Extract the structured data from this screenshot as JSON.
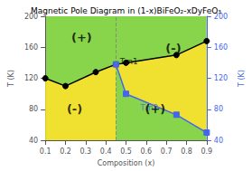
{
  "chart_data": {
    "type": "line",
    "title": "Magnetic Pole Diagram in (1-x)BiFeO₂-xDyFeO₃",
    "xlabel": "Composition (x)",
    "ylabel": "T (K)",
    "y2label": "T (K)",
    "xlim": [
      0.1,
      0.9
    ],
    "ylim": [
      40,
      200
    ],
    "y2lim": [
      40,
      200
    ],
    "xticks": [
      0.1,
      0.2,
      0.3,
      0.4,
      0.5,
      0.6,
      0.7,
      0.8,
      0.9
    ],
    "yticks": [
      40,
      80,
      120,
      160,
      200
    ],
    "y2ticks": [
      40,
      80,
      120,
      160,
      200
    ],
    "grid": false,
    "background_color": "#88d44a",
    "fill_color": "#f0e030",
    "vlines": [
      0.45
    ],
    "series": [
      {
        "name": "Tm1",
        "x": [
          0.1,
          0.2,
          0.35,
          0.45,
          0.5,
          0.75,
          0.9
        ],
        "values": [
          120,
          110,
          128,
          138,
          140,
          150,
          168
        ],
        "color": "#000000",
        "marker": "circle"
      },
      {
        "name": "Tm2",
        "x": [
          0.45,
          0.5,
          0.75,
          0.9
        ],
        "values": [
          138,
          100,
          73,
          50
        ],
        "color": "#4466ee",
        "marker": "square"
      }
    ],
    "annotations": [
      {
        "text": "Tm1",
        "x": 0.515,
        "y": 142,
        "color": "#000000"
      },
      {
        "text": "Tm2",
        "x": 0.615,
        "y": 82,
        "color": "#4466ee"
      },
      {
        "text": "(+)",
        "x": 0.28,
        "y": 172
      },
      {
        "text": "(-)",
        "x": 0.245,
        "y": 80
      },
      {
        "text": "(+)",
        "x": 0.645,
        "y": 80
      },
      {
        "text": "(-)",
        "x": 0.735,
        "y": 158
      }
    ]
  }
}
